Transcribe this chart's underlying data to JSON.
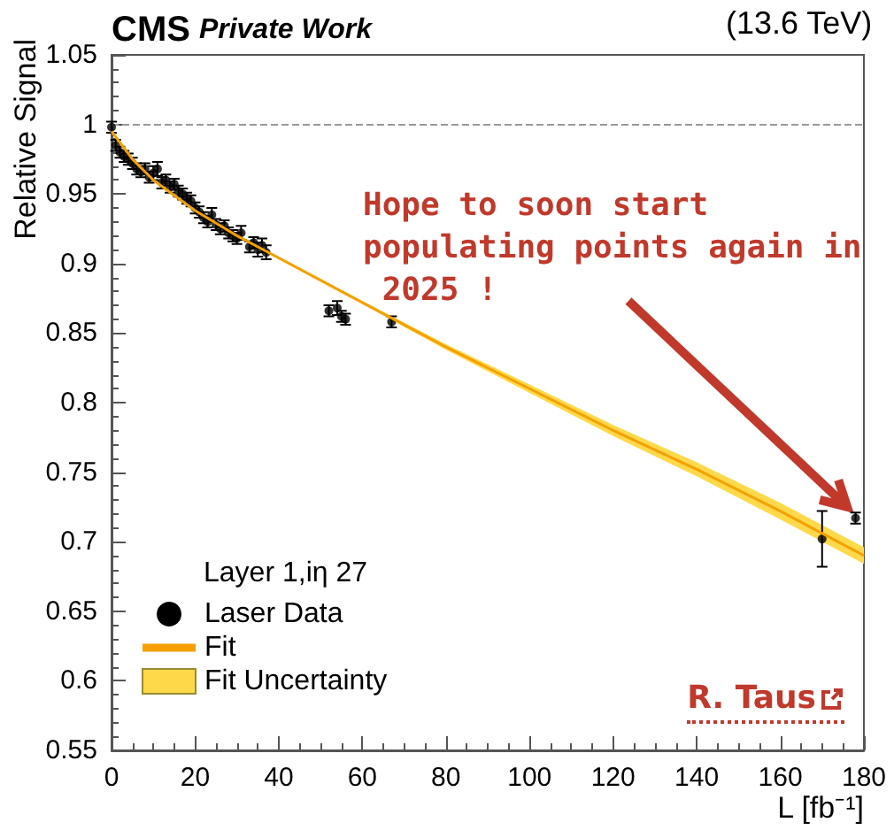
{
  "chart_data": {
    "type": "scatter",
    "title": "CMS",
    "subtitle": "Private Work",
    "xlabel": "L [fb⁻¹]",
    "ylabel": "Relative Signal",
    "legend_title": "Layer 1,iη 27",
    "annotations": [
      {
        "text": "Hope to soon start populating points again in 2025 !",
        "x": 176,
        "y": 0.725
      },
      "(13.6 TeV)",
      "R. Taus"
    ],
    "series": [
      {
        "name": "Laser Data",
        "color": "#000000",
        "marker": "circle",
        "x": [
          0,
          1,
          2,
          3,
          4,
          5,
          6,
          7,
          8,
          9,
          10,
          11,
          12,
          13,
          14,
          15,
          16,
          17,
          18,
          19,
          20,
          21,
          22,
          23,
          24,
          25,
          26,
          27,
          28,
          29,
          30,
          31,
          33,
          34,
          35,
          36,
          37,
          52,
          54,
          55,
          56,
          67,
          170,
          178
        ],
        "values": [
          0.998,
          0.985,
          0.98,
          0.977,
          0.975,
          0.972,
          0.968,
          0.966,
          0.968,
          0.962,
          0.965,
          0.968,
          0.958,
          0.96,
          0.955,
          0.957,
          0.952,
          0.95,
          0.947,
          0.945,
          0.94,
          0.937,
          0.933,
          0.93,
          0.935,
          0.928,
          0.925,
          0.927,
          0.922,
          0.92,
          0.918,
          0.922,
          0.912,
          0.915,
          0.91,
          0.913,
          0.908,
          0.866,
          0.868,
          0.862,
          0.86,
          0.858,
          0.702,
          0.717
        ],
        "errors": [
          0.004,
          0.004,
          0.004,
          0.004,
          0.004,
          0.004,
          0.004,
          0.004,
          0.004,
          0.004,
          0.005,
          0.005,
          0.004,
          0.004,
          0.004,
          0.004,
          0.004,
          0.004,
          0.004,
          0.004,
          0.004,
          0.004,
          0.004,
          0.004,
          0.005,
          0.004,
          0.004,
          0.004,
          0.004,
          0.004,
          0.004,
          0.005,
          0.004,
          0.004,
          0.005,
          0.005,
          0.005,
          0.004,
          0.005,
          0.004,
          0.004,
          0.004,
          0.02,
          0.004
        ]
      },
      {
        "name": "Fit",
        "type": "line",
        "color": "#f5a000",
        "x": [
          0,
          5,
          10,
          20,
          30,
          40,
          60,
          80,
          100,
          120,
          140,
          160,
          180
        ],
        "values": [
          0.995,
          0.975,
          0.96,
          0.938,
          0.92,
          0.904,
          0.872,
          0.84,
          0.81,
          0.78,
          0.752,
          0.722,
          0.69
        ]
      },
      {
        "name": "Fit Uncertainty",
        "type": "line",
        "color": "#ffd94a",
        "x": [
          0,
          5,
          10,
          20,
          30,
          40,
          60,
          80,
          100,
          120,
          140,
          160,
          180
        ],
        "values": [
          null,
          null,
          null,
          null,
          null,
          null,
          null,
          null,
          null,
          null,
          null,
          null,
          null
        ],
        "lower": [
          0.994,
          0.974,
          0.959,
          0.937,
          0.919,
          0.903,
          0.871,
          0.838,
          0.807,
          0.776,
          0.747,
          0.716,
          0.684
        ],
        "upper": [
          0.996,
          0.976,
          0.961,
          0.939,
          0.921,
          0.905,
          0.873,
          0.842,
          0.813,
          0.784,
          0.757,
          0.728,
          0.696
        ]
      }
    ],
    "ref_lines": [
      {
        "axis": "y",
        "value": 1,
        "color": "#999999",
        "line_style": "dashed"
      }
    ],
    "xlim": [
      0,
      180
    ],
    "xticks": [
      0,
      20,
      40,
      60,
      80,
      100,
      120,
      140,
      160,
      180
    ],
    "ylim": [
      0.55,
      1.05
    ],
    "yticks": [
      0.55,
      0.6,
      0.65,
      0.7,
      0.75,
      0.8,
      0.85,
      0.9,
      0.95,
      1,
      1.05
    ],
    "grid": false,
    "legend": "bottom left"
  }
}
